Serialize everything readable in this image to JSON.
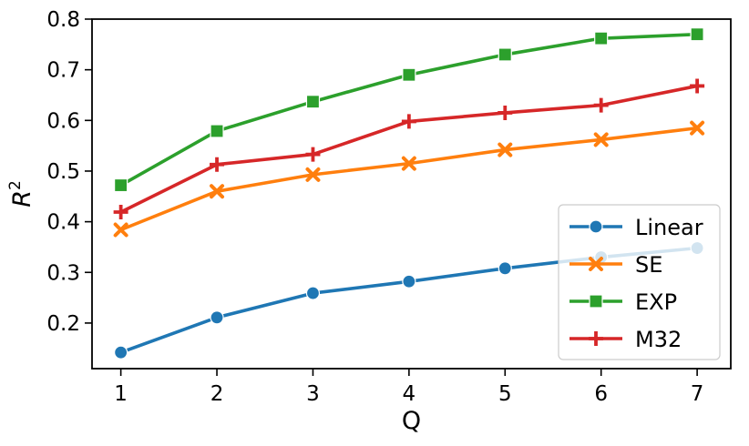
{
  "chart_data": {
    "type": "line",
    "xlabel": "Q",
    "ylabel": "R",
    "ylabel_superscript": "2",
    "x": [
      1,
      2,
      3,
      4,
      5,
      6,
      7
    ],
    "x_ticks": [
      "1",
      "2",
      "3",
      "4",
      "5",
      "6",
      "7"
    ],
    "y_ticks": [
      "0.2",
      "0.3",
      "0.4",
      "0.5",
      "0.6",
      "0.7",
      "0.8"
    ],
    "xlim": [
      0.7,
      7.35
    ],
    "ylim": [
      0.11,
      0.8
    ],
    "grid": false,
    "legend_position": "lower-right",
    "series": [
      {
        "name": "Linear",
        "color": "#1f77b4",
        "marker": "circle",
        "values": [
          0.142,
          0.211,
          0.259,
          0.282,
          0.308,
          0.33,
          0.348
        ]
      },
      {
        "name": "SE",
        "color": "#ff7f0e",
        "marker": "x",
        "values": [
          0.384,
          0.46,
          0.493,
          0.515,
          0.542,
          0.562,
          0.585
        ]
      },
      {
        "name": "EXP",
        "color": "#2ca02c",
        "marker": "square",
        "values": [
          0.472,
          0.579,
          0.637,
          0.69,
          0.73,
          0.762,
          0.77
        ]
      },
      {
        "name": "M32",
        "color": "#d62728",
        "marker": "plus",
        "values": [
          0.419,
          0.513,
          0.533,
          0.598,
          0.615,
          0.63,
          0.668
        ]
      }
    ]
  }
}
